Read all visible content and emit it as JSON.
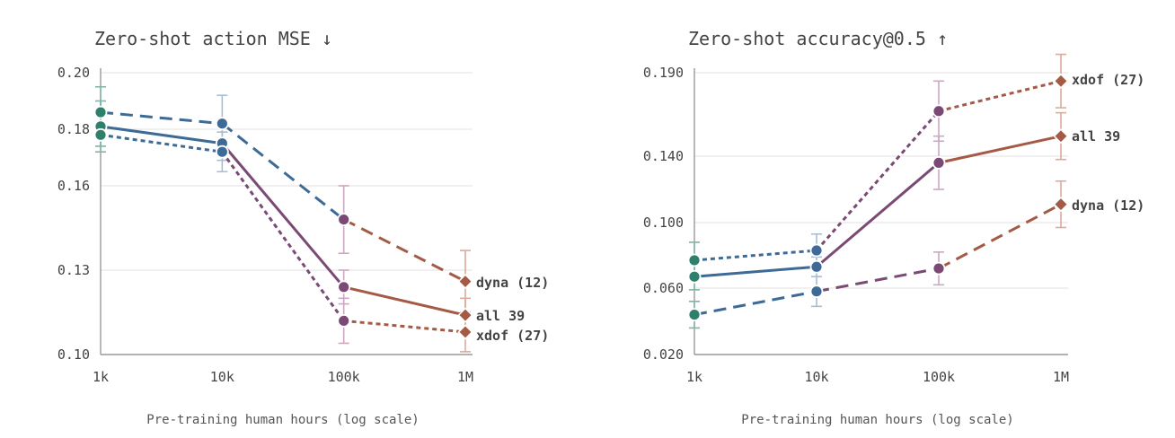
{
  "chart_data": [
    {
      "type": "line",
      "title": "Zero-shot action MSE ↓",
      "xlabel": "Pre-training human hours (log scale)",
      "ylabel": "",
      "x_scale": "log",
      "x": [
        1000,
        10000,
        100000,
        1000000
      ],
      "x_tick_labels": [
        "1k",
        "10k",
        "100k",
        "1M"
      ],
      "ylim": [
        0.1,
        0.2
      ],
      "y_ticks": [
        0.1,
        0.13,
        0.16,
        0.18,
        0.2
      ],
      "y_tick_labels": [
        "0.10",
        "0.13",
        "0.16",
        "0.18",
        "0.20"
      ],
      "grid": true,
      "series": [
        {
          "name": "dyna (12)",
          "style": "long-dash",
          "values": [
            0.186,
            0.182,
            0.148,
            0.126
          ],
          "errors": [
            0.009,
            0.01,
            0.012,
            0.011
          ]
        },
        {
          "name": "all 39",
          "style": "solid",
          "values": [
            0.181,
            0.175,
            0.124,
            0.114
          ],
          "errors": [
            0.009,
            0.006,
            0.006,
            0.006
          ]
        },
        {
          "name": "xdof (27)",
          "style": "short-dash",
          "values": [
            0.178,
            0.172,
            0.112,
            0.108
          ],
          "errors": [
            0.004,
            0.007,
            0.008,
            0.007
          ]
        }
      ]
    },
    {
      "type": "line",
      "title": "Zero-shot accuracy@0.5 ↑",
      "xlabel": "Pre-training human hours (log scale)",
      "ylabel": "",
      "x_scale": "log",
      "x": [
        1000,
        10000,
        100000,
        1000000
      ],
      "x_tick_labels": [
        "1k",
        "10k",
        "100k",
        "1M"
      ],
      "ylim": [
        0.02,
        0.19
      ],
      "y_ticks": [
        0.02,
        0.06,
        0.1,
        0.14,
        0.19
      ],
      "y_tick_labels": [
        "0.020",
        "0.060",
        "0.100",
        "0.140",
        "0.190"
      ],
      "grid": true,
      "series": [
        {
          "name": "xdof (27)",
          "style": "short-dash",
          "values": [
            0.077,
            0.083,
            0.167,
            0.185
          ],
          "errors": [
            0.011,
            0.01,
            0.018,
            0.016
          ]
        },
        {
          "name": "all 39",
          "style": "solid",
          "values": [
            0.067,
            0.073,
            0.136,
            0.152
          ],
          "errors": [
            0.008,
            0.006,
            0.016,
            0.014
          ]
        },
        {
          "name": "dyna (12)",
          "style": "long-dash",
          "values": [
            0.044,
            0.058,
            0.072,
            0.111
          ],
          "errors": [
            0.008,
            0.009,
            0.01,
            0.014
          ]
        }
      ]
    }
  ],
  "colors": {
    "blue": "#3d6a96",
    "purple": "#7a4a74",
    "brown": "#a45a44",
    "green": "#2f7f6d",
    "error_blue": "#a9bdd4",
    "error_purple": "#c9a9c1",
    "error_brown": "#dcaa9a",
    "error_green": "#80b3a5"
  }
}
